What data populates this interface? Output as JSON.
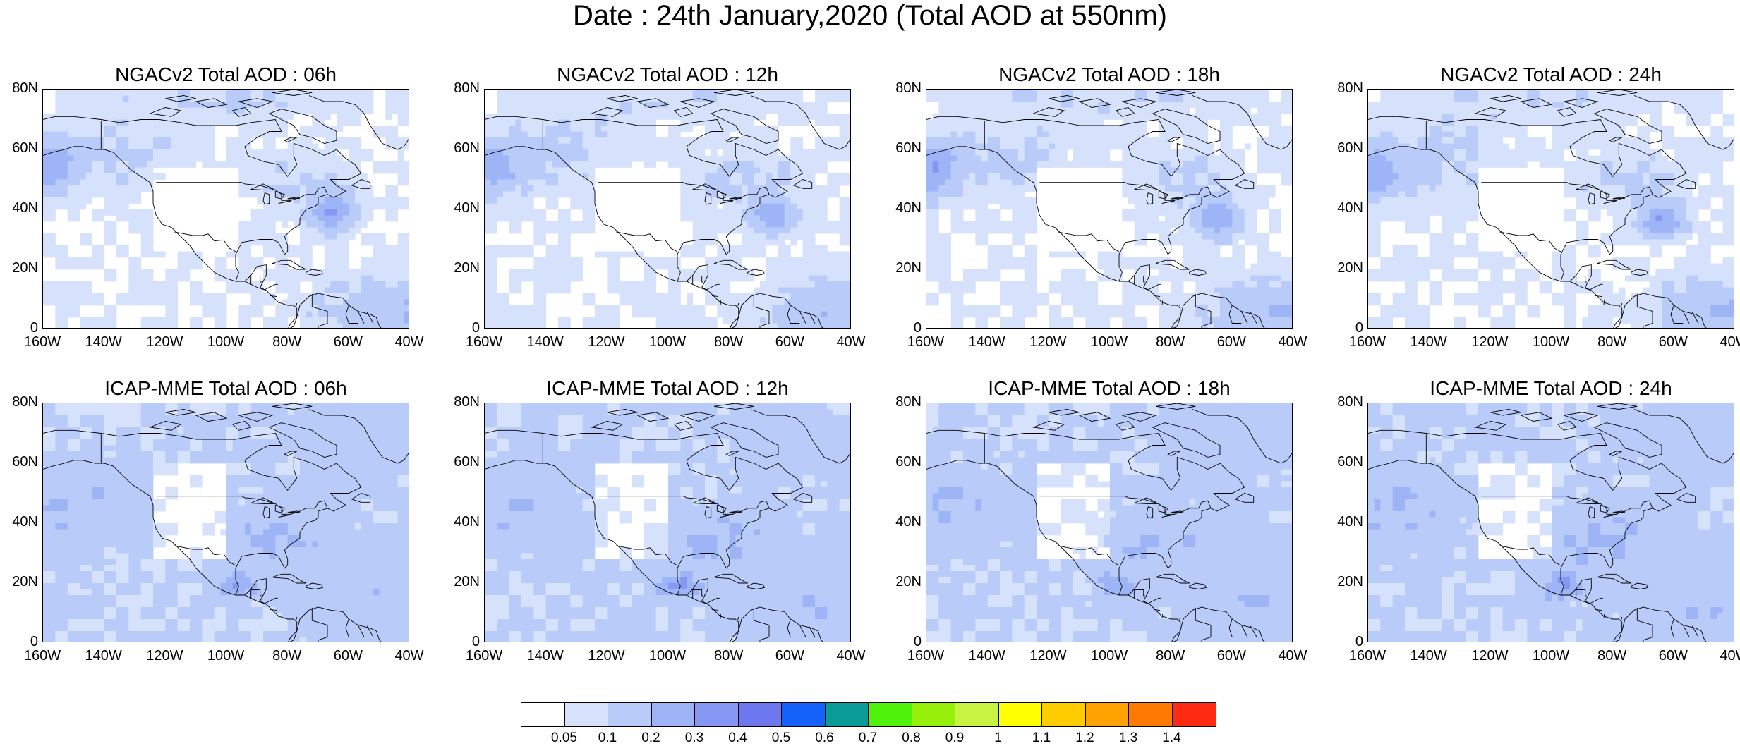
{
  "title": "Date : 24th January,2020 (Total AOD at 550nm)",
  "panels": [
    {
      "title": "NGACv2 Total AOD : 06h",
      "model": "ngac",
      "hour": 6
    },
    {
      "title": "NGACv2 Total AOD : 12h",
      "model": "ngac",
      "hour": 12
    },
    {
      "title": "NGACv2 Total AOD : 18h",
      "model": "ngac",
      "hour": 18
    },
    {
      "title": "NGACv2 Total AOD : 24h",
      "model": "ngac",
      "hour": 24
    },
    {
      "title": "ICAP-MME Total AOD : 06h",
      "model": "icap",
      "hour": 6
    },
    {
      "title": "ICAP-MME Total AOD : 12h",
      "model": "icap",
      "hour": 12
    },
    {
      "title": "ICAP-MME Total AOD : 18h",
      "model": "icap",
      "hour": 18
    },
    {
      "title": "ICAP-MME Total AOD : 24h",
      "model": "icap",
      "hour": 24
    }
  ],
  "lat_ticks": [
    "80N",
    "60N",
    "40N",
    "20N",
    "0"
  ],
  "lon_ticks": [
    "160W",
    "140W",
    "120W",
    "100W",
    "80W",
    "60W",
    "40W"
  ],
  "colorbar": {
    "colors": [
      "#ffffff",
      "#d6e2fc",
      "#b8cbf9",
      "#9db4f6",
      "#8497f2",
      "#6d78ef",
      "#1562fb",
      "#0b9b96",
      "#4ff20a",
      "#97f00a",
      "#c7f443",
      "#ffff00",
      "#ffcc00",
      "#ffa200",
      "#ff7a00",
      "#ff2a12"
    ],
    "labels": [
      "0.05",
      "0.1",
      "0.2",
      "0.3",
      "0.4",
      "0.5",
      "0.6",
      "0.7",
      "0.8",
      "0.9",
      "1",
      "1.1",
      "1.2",
      "1.3",
      "1.4"
    ]
  }
}
